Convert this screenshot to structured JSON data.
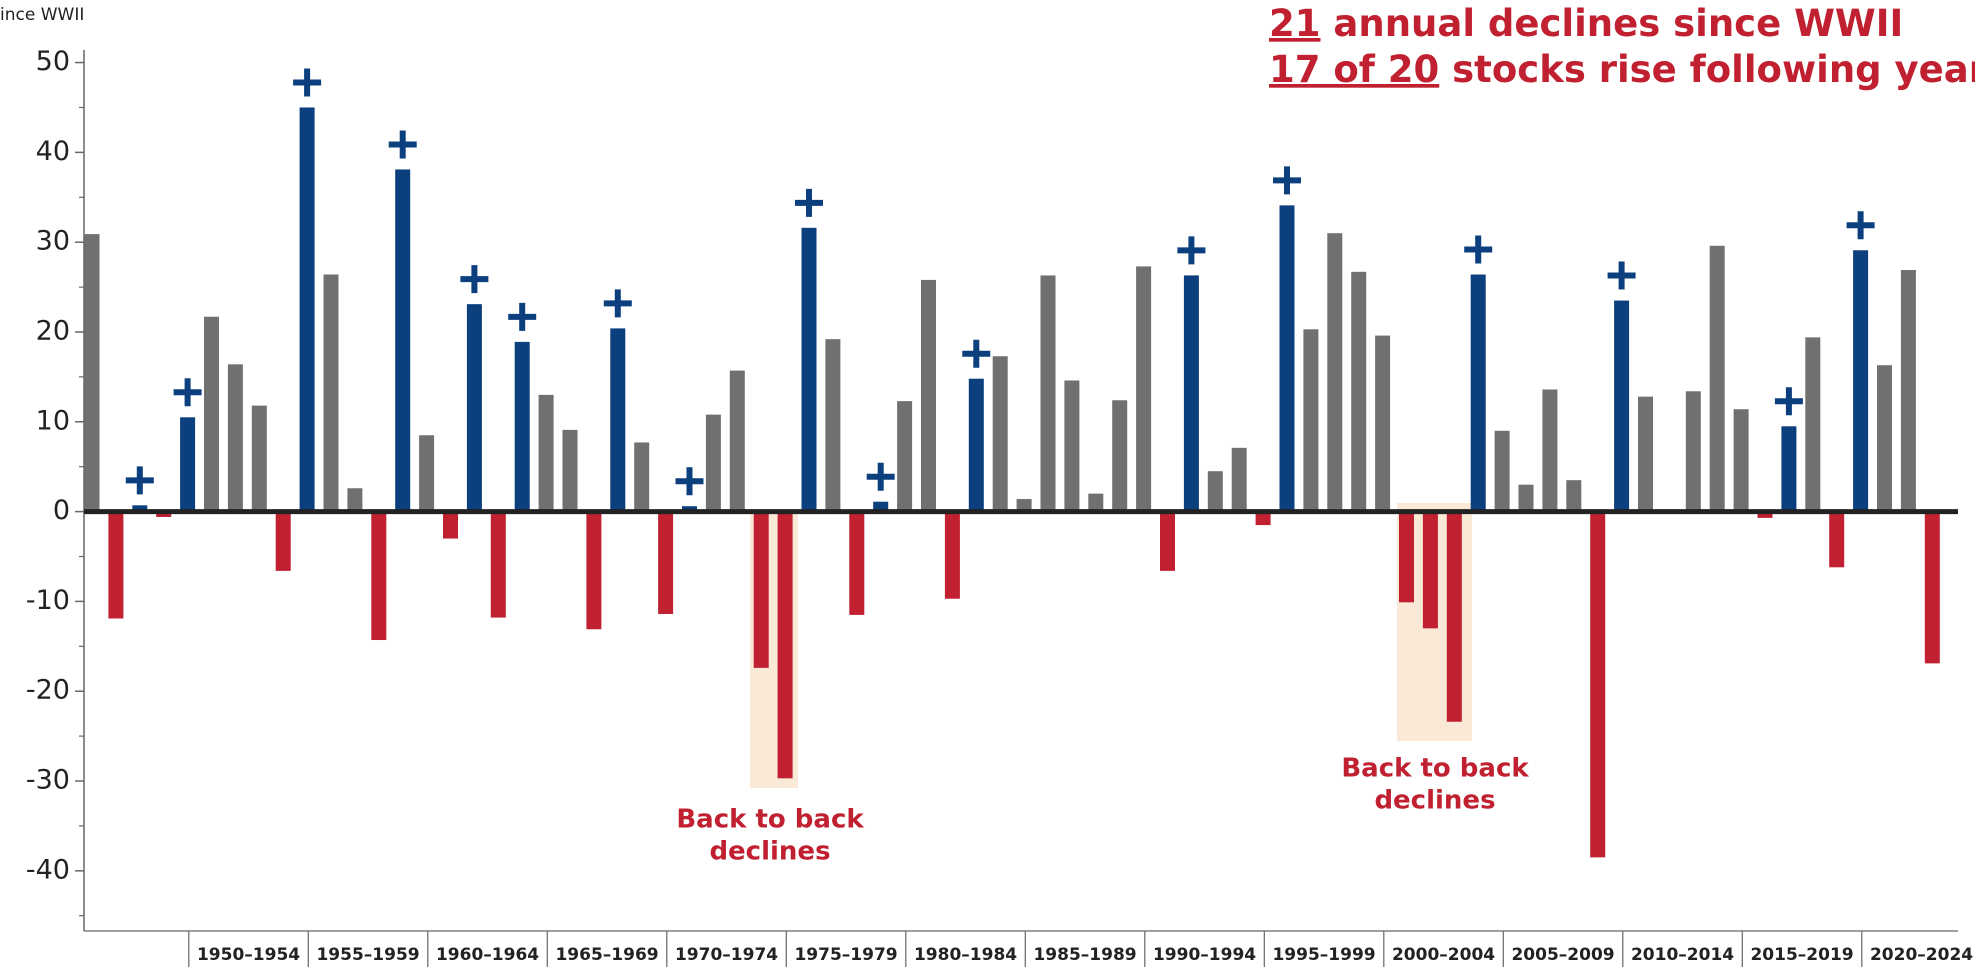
{
  "chart_data": {
    "type": "bar",
    "corner_label": "ince WWII",
    "headline": [
      {
        "underlined": "21",
        "rest": " annual declines since WWII"
      },
      {
        "underlined": "17 of 20",
        "rest": " stocks rise following year"
      }
    ],
    "annotations": [
      [
        "Back to back",
        "declines"
      ],
      [
        "Back to back",
        "declines"
      ]
    ],
    "groups": [
      "1950–1954",
      "1955–1959",
      "1960–1964",
      "1965–1969",
      "1970–1974",
      "1975–1979",
      "1980–1984",
      "1985–1989",
      "1990–1994",
      "1995–1999",
      "2000–2004",
      "2005–2009",
      "2010–2014",
      "2015–2019",
      "2020–2024"
    ],
    "categories": [
      null,
      null,
      null,
      null,
      null,
      null,
      null,
      null,
      null,
      null,
      null,
      null,
      null,
      null,
      null,
      null,
      null,
      null,
      null,
      null,
      null,
      null,
      null,
      null,
      null,
      null,
      null,
      null,
      null,
      null,
      null,
      null,
      null,
      null,
      null,
      null,
      null,
      null,
      null,
      null,
      null,
      null,
      null,
      null,
      null,
      null,
      null,
      null,
      null,
      null,
      null,
      null,
      null,
      null,
      null,
      null,
      null,
      null,
      null,
      null,
      null,
      null,
      null,
      null,
      null,
      null,
      null,
      null,
      null,
      null,
      null,
      null,
      null,
      null,
      null,
      null,
      null,
      null
    ],
    "values": [
      30.9,
      -11.9,
      0.7,
      -0.6,
      10.5,
      21.7,
      16.4,
      11.8,
      -6.6,
      45.0,
      26.4,
      2.6,
      -14.3,
      38.1,
      8.5,
      -3.0,
      23.1,
      -11.8,
      18.9,
      13.0,
      9.1,
      -13.1,
      20.4,
      7.7,
      -11.4,
      0.6,
      10.8,
      15.7,
      -17.4,
      -29.7,
      31.6,
      19.2,
      -11.5,
      1.1,
      12.3,
      25.8,
      -9.7,
      14.8,
      17.3,
      1.4,
      26.3,
      14.6,
      2.0,
      12.4,
      27.3,
      -6.6,
      26.3,
      4.5,
      7.1,
      -1.5,
      34.1,
      20.3,
      31.0,
      26.7,
      19.6,
      -10.1,
      -13.0,
      -23.4,
      26.4,
      9.0,
      3.0,
      13.6,
      3.5,
      -38.5,
      23.5,
      12.8,
      0.0,
      13.4,
      29.6,
      11.4,
      -0.7,
      9.5,
      19.4,
      -6.2,
      29.1,
      16.3,
      26.9,
      -16.9
    ],
    "color": "#707070",
    "decline_color": "#c0202f",
    "rebound_color": "#0b3f7e",
    "ylim": [
      -46.7,
      51.4
    ],
    "yticks": [
      50,
      40,
      30,
      20,
      10,
      0,
      -10,
      -20,
      -30,
      -40
    ],
    "yminorticks": [
      45,
      35,
      25,
      15,
      5,
      -5,
      -15,
      -25,
      -35,
      -45
    ]
  }
}
